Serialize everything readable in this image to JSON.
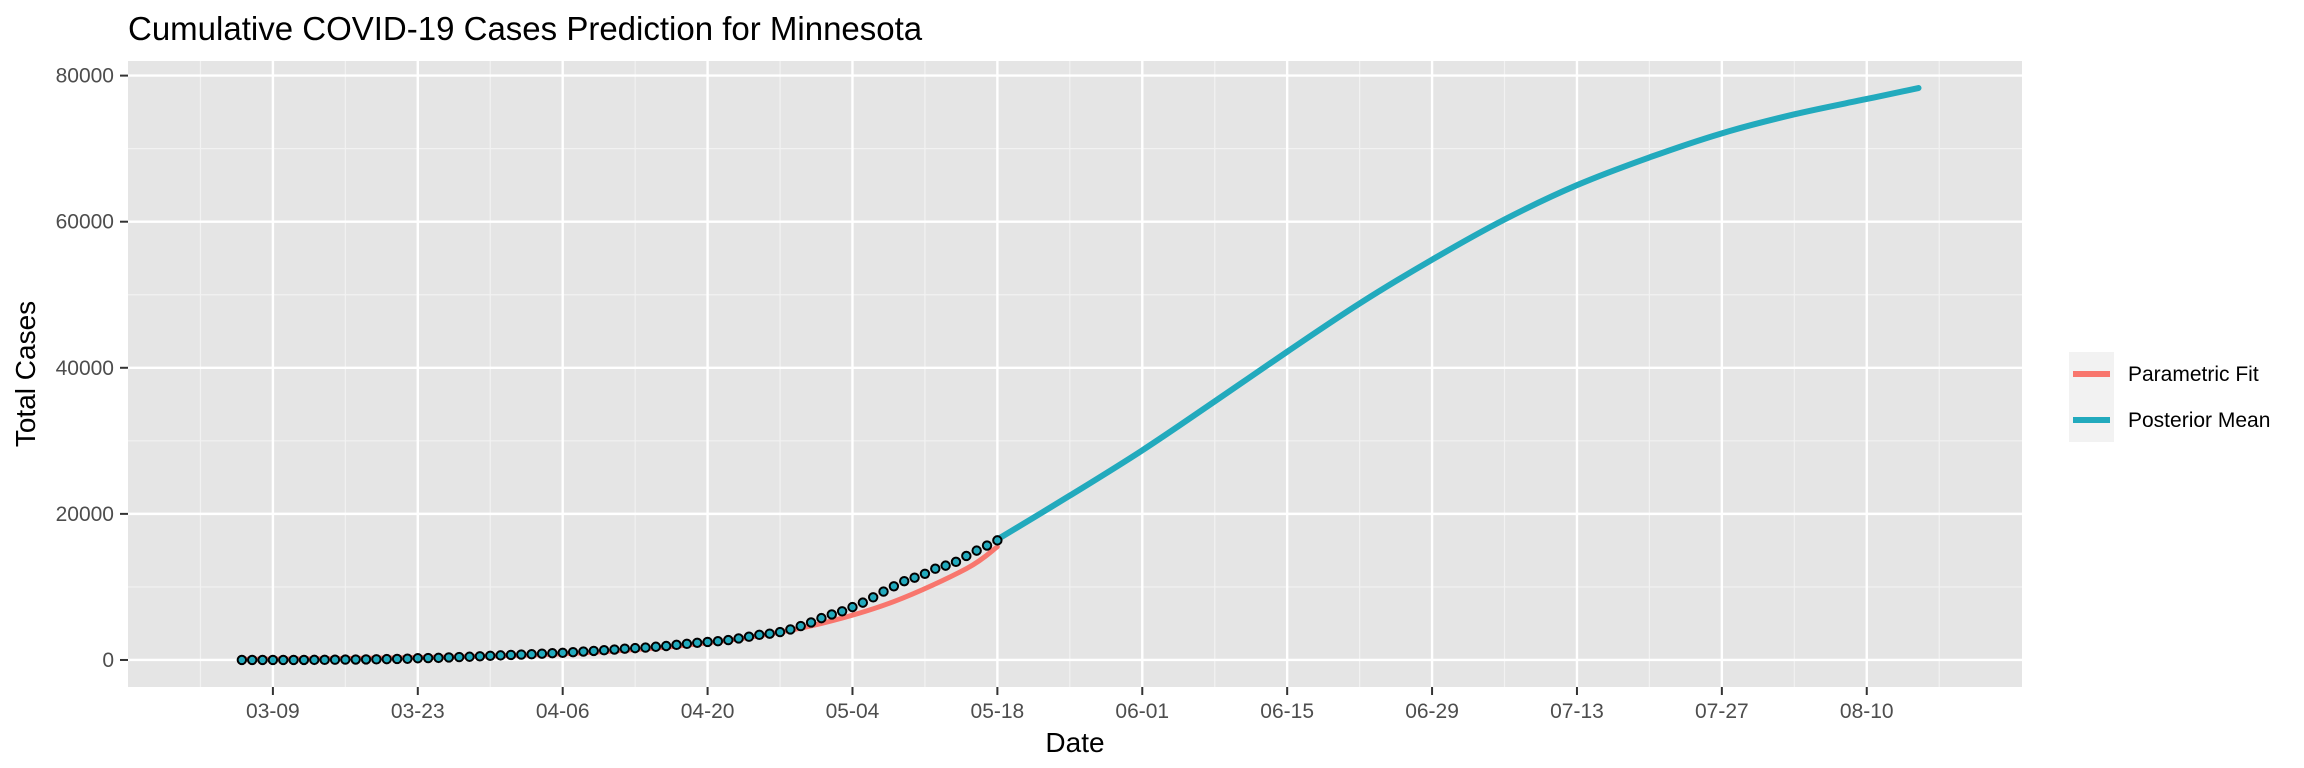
{
  "chart_data": {
    "type": "line",
    "title": "Cumulative COVID-19 Cases Prediction for Minnesota",
    "xlabel": "Date",
    "ylabel": "Total Cases",
    "x_axis": {
      "scale": "date",
      "range": [
        "2020-02-24",
        "2020-08-25"
      ],
      "ticks": [
        {
          "value": "2020-03-09",
          "label": "03-09"
        },
        {
          "value": "2020-03-23",
          "label": "03-23"
        },
        {
          "value": "2020-04-06",
          "label": "04-06"
        },
        {
          "value": "2020-04-20",
          "label": "04-20"
        },
        {
          "value": "2020-05-04",
          "label": "05-04"
        },
        {
          "value": "2020-05-18",
          "label": "05-18"
        },
        {
          "value": "2020-06-01",
          "label": "06-01"
        },
        {
          "value": "2020-06-15",
          "label": "06-15"
        },
        {
          "value": "2020-06-29",
          "label": "06-29"
        },
        {
          "value": "2020-07-13",
          "label": "07-13"
        },
        {
          "value": "2020-07-27",
          "label": "07-27"
        },
        {
          "value": "2020-08-10",
          "label": "08-10"
        }
      ]
    },
    "y_axis": {
      "range": [
        -3700,
        82000
      ],
      "ticks": [
        {
          "value": 0,
          "label": "0"
        },
        {
          "value": 20000,
          "label": "20000"
        },
        {
          "value": 40000,
          "label": "40000"
        },
        {
          "value": 60000,
          "label": "60000"
        },
        {
          "value": 80000,
          "label": "80000"
        }
      ]
    },
    "grid": true,
    "background": "#e5e5e5",
    "legend_position": "right",
    "series": [
      {
        "name": "Parametric Fit",
        "color": "#f8766d",
        "points": [
          [
            "2020-03-06",
            80
          ],
          [
            "2020-03-13",
            150
          ],
          [
            "2020-03-20",
            260
          ],
          [
            "2020-03-27",
            420
          ],
          [
            "2020-04-03",
            700
          ],
          [
            "2020-04-10",
            1150
          ],
          [
            "2020-04-17",
            1900
          ],
          [
            "2020-04-24",
            3100
          ],
          [
            "2020-05-01",
            5000
          ],
          [
            "2020-05-08",
            8000
          ],
          [
            "2020-05-15",
            12500
          ],
          [
            "2020-05-18",
            15500
          ]
        ]
      },
      {
        "name": "Posterior Mean",
        "color": "#22aabd",
        "points": [
          [
            "2020-05-18",
            16500
          ],
          [
            "2020-05-25",
            22500
          ],
          [
            "2020-06-01",
            28700
          ],
          [
            "2020-06-08",
            35400
          ],
          [
            "2020-06-15",
            42200
          ],
          [
            "2020-06-22",
            48800
          ],
          [
            "2020-06-29",
            54800
          ],
          [
            "2020-07-06",
            60300
          ],
          [
            "2020-07-13",
            65000
          ],
          [
            "2020-07-20",
            68800
          ],
          [
            "2020-07-27",
            72100
          ],
          [
            "2020-08-03",
            74700
          ],
          [
            "2020-08-10",
            76800
          ],
          [
            "2020-08-15",
            78300
          ]
        ]
      },
      {
        "name": "Observed",
        "type": "scatter",
        "color": "#22aabd",
        "stroke": "#000000",
        "points": [
          [
            "2020-03-06",
            1
          ],
          [
            "2020-03-07",
            1
          ],
          [
            "2020-03-08",
            2
          ],
          [
            "2020-03-09",
            2
          ],
          [
            "2020-03-10",
            3
          ],
          [
            "2020-03-11",
            5
          ],
          [
            "2020-03-12",
            9
          ],
          [
            "2020-03-13",
            14
          ],
          [
            "2020-03-14",
            21
          ],
          [
            "2020-03-15",
            35
          ],
          [
            "2020-03-16",
            54
          ],
          [
            "2020-03-17",
            60
          ],
          [
            "2020-03-18",
            77
          ],
          [
            "2020-03-19",
            89
          ],
          [
            "2020-03-20",
            115
          ],
          [
            "2020-03-21",
            138
          ],
          [
            "2020-03-22",
            169
          ],
          [
            "2020-03-23",
            235
          ],
          [
            "2020-03-24",
            262
          ],
          [
            "2020-03-25",
            287
          ],
          [
            "2020-03-26",
            346
          ],
          [
            "2020-03-27",
            398
          ],
          [
            "2020-03-28",
            441
          ],
          [
            "2020-03-29",
            503
          ],
          [
            "2020-03-30",
            576
          ],
          [
            "2020-03-31",
            629
          ],
          [
            "2020-04-01",
            689
          ],
          [
            "2020-04-02",
            742
          ],
          [
            "2020-04-03",
            789
          ],
          [
            "2020-04-04",
            865
          ],
          [
            "2020-04-05",
            935
          ],
          [
            "2020-04-06",
            986
          ],
          [
            "2020-04-07",
            1069
          ],
          [
            "2020-04-08",
            1154
          ],
          [
            "2020-04-09",
            1242
          ],
          [
            "2020-04-10",
            1336
          ],
          [
            "2020-04-11",
            1427
          ],
          [
            "2020-04-12",
            1550
          ],
          [
            "2020-04-13",
            1621
          ],
          [
            "2020-04-14",
            1695
          ],
          [
            "2020-04-15",
            1809
          ],
          [
            "2020-04-16",
            1912
          ],
          [
            "2020-04-17",
            2071
          ],
          [
            "2020-04-18",
            2213
          ],
          [
            "2020-04-19",
            2356
          ],
          [
            "2020-04-20",
            2470
          ],
          [
            "2020-04-21",
            2567
          ],
          [
            "2020-04-22",
            2721
          ],
          [
            "2020-04-23",
            2942
          ],
          [
            "2020-04-24",
            3185
          ],
          [
            "2020-04-25",
            3446
          ],
          [
            "2020-04-26",
            3602
          ],
          [
            "2020-04-27",
            3816
          ],
          [
            "2020-04-28",
            4181
          ],
          [
            "2020-04-29",
            4644
          ],
          [
            "2020-04-30",
            5136
          ],
          [
            "2020-05-01",
            5730
          ],
          [
            "2020-05-02",
            6228
          ],
          [
            "2020-05-03",
            6663
          ],
          [
            "2020-05-04",
            7234
          ],
          [
            "2020-05-05",
            7851
          ],
          [
            "2020-05-06",
            8579
          ],
          [
            "2020-05-07",
            9365
          ],
          [
            "2020-05-08",
            10088
          ],
          [
            "2020-05-09",
            10790
          ],
          [
            "2020-05-10",
            11271
          ],
          [
            "2020-05-11",
            11799
          ],
          [
            "2020-05-12",
            12494
          ],
          [
            "2020-05-13",
            12917
          ],
          [
            "2020-05-14",
            13435
          ],
          [
            "2020-05-15",
            14240
          ],
          [
            "2020-05-16",
            14969
          ],
          [
            "2020-05-17",
            15668
          ],
          [
            "2020-05-18",
            16372
          ]
        ]
      }
    ]
  }
}
